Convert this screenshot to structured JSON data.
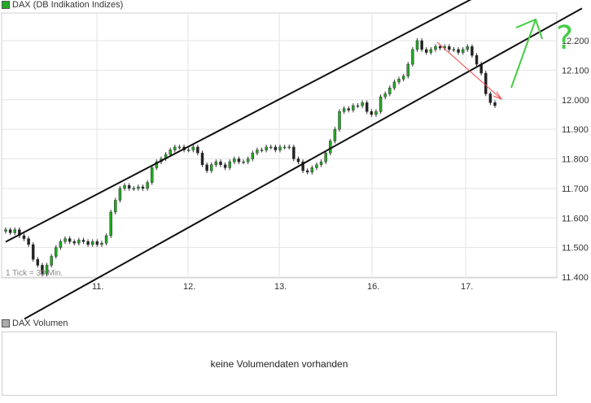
{
  "header": {
    "instrument": "DAX (DB Indikation Indizes)",
    "swatch_color": "#22aa22"
  },
  "tick_note": "1 Tick = 30 Min.",
  "volume": {
    "label": "DAX Volumen",
    "message": "keine Volumendaten vorhanden",
    "swatch_color": "#aaaaaa"
  },
  "annotation": {
    "question_mark": "?"
  },
  "chart_data": {
    "type": "candlestick",
    "x_labels": [
      "11.",
      "12.",
      "13.",
      "16.",
      "17."
    ],
    "y_ticks": [
      "12.200",
      "12.100",
      "12.000",
      "11.900",
      "11.800",
      "11.700",
      "11.600",
      "11.500",
      "11.400"
    ],
    "y_tick_values": [
      12200,
      12100,
      12000,
      11900,
      11800,
      11700,
      11600,
      11500,
      11400
    ],
    "ylim": [
      11360,
      12310
    ],
    "grid": true,
    "up_color": "#22aa22",
    "down_color": "#222222",
    "closes": [
      11560,
      11550,
      11560,
      11540,
      11530,
      11510,
      11460,
      11440,
      11410,
      11440,
      11470,
      11500,
      11520,
      11530,
      11520,
      11515,
      11525,
      11520,
      11510,
      11520,
      11510,
      11515,
      11540,
      11620,
      11660,
      11700,
      11710,
      11700,
      11700,
      11705,
      11700,
      11720,
      11770,
      11790,
      11800,
      11815,
      11830,
      11840,
      11840,
      11830,
      11830,
      11840,
      11820,
      11780,
      11760,
      11780,
      11790,
      11780,
      11770,
      11790,
      11800,
      11790,
      11790,
      11800,
      11820,
      11830,
      11830,
      11840,
      11840,
      11830,
      11840,
      11840,
      11840,
      11800,
      11790,
      11760,
      11755,
      11770,
      11780,
      11790,
      11820,
      11860,
      11900,
      11960,
      11970,
      11965,
      11980,
      11980,
      11990,
      11960,
      11950,
      11960,
      12010,
      12020,
      12040,
      12060,
      12070,
      12080,
      12120,
      12170,
      12200,
      12170,
      12160,
      12170,
      12180,
      12175,
      12180,
      12170,
      12170,
      12160,
      12170,
      12180,
      12150,
      12120,
      12090,
      12020,
      11990,
      11980
    ],
    "upper_channel": {
      "start": [
        "11.",
        11680
      ],
      "end": [
        "17.",
        12330
      ]
    },
    "lower_channel": {
      "start": [
        "11.",
        11395
      ],
      "end": [
        "17.",
        12090
      ]
    }
  }
}
